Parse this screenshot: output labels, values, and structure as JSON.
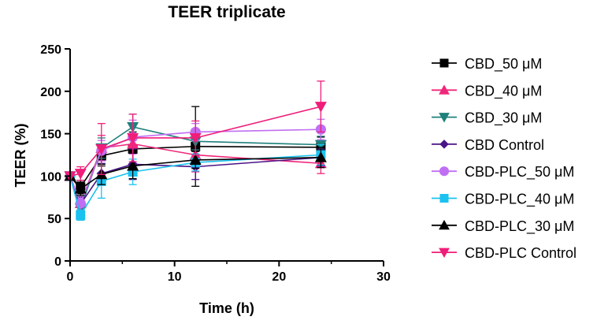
{
  "chart_data": {
    "type": "line",
    "title": "TEER triplicate",
    "xlabel": "Time (h)",
    "ylabel": "TEER (%)",
    "xlim": [
      0,
      30
    ],
    "ylim": [
      0,
      250
    ],
    "xticks": [
      "0",
      "10",
      "20",
      "30"
    ],
    "yticks": [
      "0",
      "50",
      "100",
      "150",
      "200",
      "250"
    ],
    "grid": false,
    "legend_position": "right",
    "x": [
      0,
      1,
      3,
      6,
      12,
      24
    ],
    "series": [
      {
        "name": "CBD_50 μM",
        "color": "#000000",
        "marker": "square",
        "values": [
          100,
          87,
          124,
          132,
          135,
          134
        ],
        "errors": [
          0,
          8,
          12,
          20,
          47,
          12
        ]
      },
      {
        "name": "CBD_40 μM",
        "color": "#f0277a",
        "marker": "triangle-up",
        "values": [
          100,
          68,
          133,
          138,
          125,
          115
        ],
        "errors": [
          0,
          8,
          15,
          25,
          20,
          12
        ]
      },
      {
        "name": "CBD_30 μM",
        "color": "#1f807c",
        "marker": "triangle-down",
        "values": [
          100,
          62,
          133,
          158,
          141,
          137
        ],
        "errors": [
          0,
          8,
          12,
          15,
          10,
          10
        ]
      },
      {
        "name": "CBD Control",
        "color": "#4a1486",
        "marker": "diamond",
        "values": [
          100,
          67,
          103,
          114,
          111,
          122
        ],
        "errors": [
          0,
          8,
          12,
          18,
          15,
          10
        ]
      },
      {
        "name": "CBD-PLC_50 μM",
        "color": "#c06ff2",
        "marker": "circle",
        "values": [
          100,
          68,
          130,
          146,
          152,
          155
        ],
        "errors": [
          0,
          8,
          12,
          20,
          10,
          12
        ]
      },
      {
        "name": "CBD-PLC_40 μM",
        "color": "#1ac2ef",
        "marker": "square",
        "values": [
          100,
          54,
          94,
          105,
          116,
          125
        ],
        "errors": [
          0,
          6,
          20,
          15,
          10,
          12
        ]
      },
      {
        "name": "CBD-PLC_30 μM",
        "color": "#000000",
        "marker": "triangle-up",
        "values": [
          100,
          85,
          102,
          112,
          119,
          122
        ],
        "errors": [
          0,
          8,
          12,
          15,
          10,
          12
        ]
      },
      {
        "name": "CBD-PLC Control",
        "color": "#f01d7a",
        "marker": "triangle-down",
        "values": [
          100,
          103,
          132,
          145,
          145,
          182
        ],
        "errors": [
          0,
          8,
          30,
          28,
          20,
          30
        ]
      }
    ]
  }
}
